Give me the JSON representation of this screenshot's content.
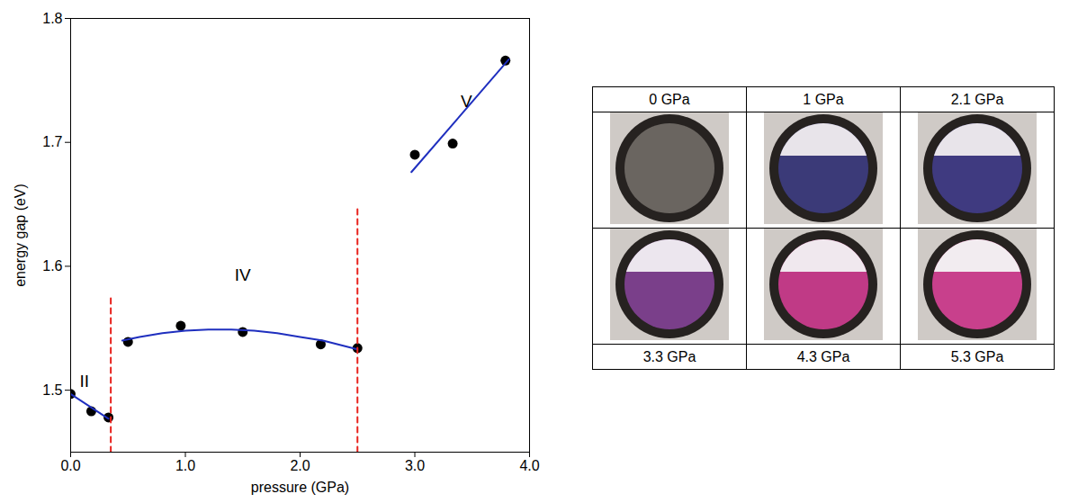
{
  "chart_data": {
    "type": "scatter",
    "x_label": "pressure (GPa)",
    "y_label": "energy gap (eV)",
    "xlim": [
      0,
      4
    ],
    "ylim": [
      1.45,
      1.8
    ],
    "xticks": [
      {
        "value": 0,
        "label": "0.0"
      },
      {
        "value": 1,
        "label": "1.0"
      },
      {
        "value": 2,
        "label": "2.0"
      },
      {
        "value": 3,
        "label": "3.0"
      },
      {
        "value": 4,
        "label": "4.0"
      }
    ],
    "yticks": [
      1.5,
      1.6,
      1.7,
      1.8
    ],
    "series": [
      {
        "type": "scatter",
        "color": "#000000",
        "marker": "circle",
        "x": [
          0,
          0.18,
          0.33
        ],
        "values": [
          1.497,
          1.483,
          1.478
        ]
      },
      {
        "type": "scatter",
        "color": "#000000",
        "marker": "circle",
        "x": [
          0.5,
          0.96,
          1.5,
          2.18,
          2.5
        ],
        "values": [
          1.539,
          1.552,
          1.547,
          1.537,
          1.534
        ]
      },
      {
        "type": "scatter",
        "color": "#000000",
        "marker": "circle",
        "x": [
          3.0,
          3.33,
          3.79
        ],
        "values": [
          1.69,
          1.699,
          1.766
        ]
      },
      {
        "type": "line",
        "color": "#1f2fbf",
        "line_style": "solid",
        "x": [
          0,
          0.33
        ],
        "values": [
          1.497,
          1.477
        ]
      },
      {
        "type": "line",
        "color": "#1f2fbf",
        "line_style": "solid",
        "x": [
          0.45,
          0.6,
          0.8,
          1.0,
          1.2,
          1.4,
          1.6,
          1.8,
          2.0,
          2.2,
          2.5
        ],
        "values": [
          1.54,
          1.543,
          1.546,
          1.548,
          1.549,
          1.549,
          1.548,
          1.546,
          1.543,
          1.54,
          1.533
        ]
      },
      {
        "type": "line",
        "color": "#1f2fbf",
        "line_style": "solid",
        "x": [
          2.97,
          3.82
        ],
        "values": [
          1.676,
          1.767
        ]
      },
      {
        "type": "line",
        "color": "#e8221d",
        "line_style": "dashed",
        "x": [
          0.35,
          0.35
        ],
        "values": [
          1.45,
          1.575
        ]
      },
      {
        "type": "line",
        "color": "#e8221d",
        "line_style": "dashed",
        "x": [
          2.5,
          2.5
        ],
        "values": [
          1.45,
          1.648
        ]
      }
    ],
    "annotations": [
      {
        "text": "II",
        "x": 0.12,
        "y": 1.507
      },
      {
        "text": "IV",
        "x": 1.5,
        "y": 1.593
      },
      {
        "text": "V",
        "x": 3.45,
        "y": 1.733
      }
    ]
  },
  "photo_table": {
    "top_labels": [
      "0 GPa",
      "1 GPa",
      "2.1 GPa"
    ],
    "bottom_labels": [
      "3.3 GPa",
      "4.3 GPa",
      "5.3 GPa"
    ]
  }
}
